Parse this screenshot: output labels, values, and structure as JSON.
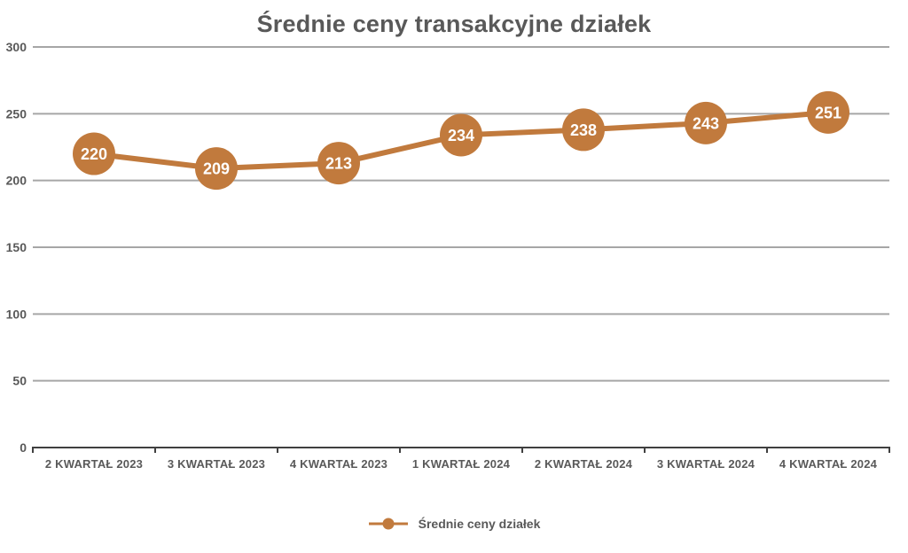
{
  "chart_data": {
    "type": "line",
    "title": "Średnie ceny transakcyjne działek",
    "categories": [
      "2 KWARTAŁ 2023",
      "3 KWARTAŁ 2023",
      "4 KWARTAŁ 2023",
      "1 KWARTAŁ 2024",
      "2 KWARTAŁ 2024",
      "3 KWARTAŁ 2024",
      "4 KWARTAŁ 2024"
    ],
    "series": [
      {
        "name": "Średnie ceny działek",
        "values": [
          220,
          209,
          213,
          234,
          238,
          243,
          251
        ]
      }
    ],
    "data_labels": [
      220,
      209,
      213,
      234,
      238,
      243,
      251
    ],
    "ylim": [
      0,
      300
    ],
    "ytick_step": 50,
    "ytick_labels": [
      "0",
      "50",
      "100",
      "150",
      "200",
      "250",
      "300"
    ],
    "xlabel": "",
    "ylabel": "",
    "grid": "horizontal",
    "legend_position": "bottom",
    "colors": {
      "accent": "#C17A3D",
      "marker_label": "#FFFFFF",
      "text": "#595959",
      "gridline": "#A6A6A6",
      "axis": "#404040",
      "background": "#FFFFFF"
    }
  }
}
